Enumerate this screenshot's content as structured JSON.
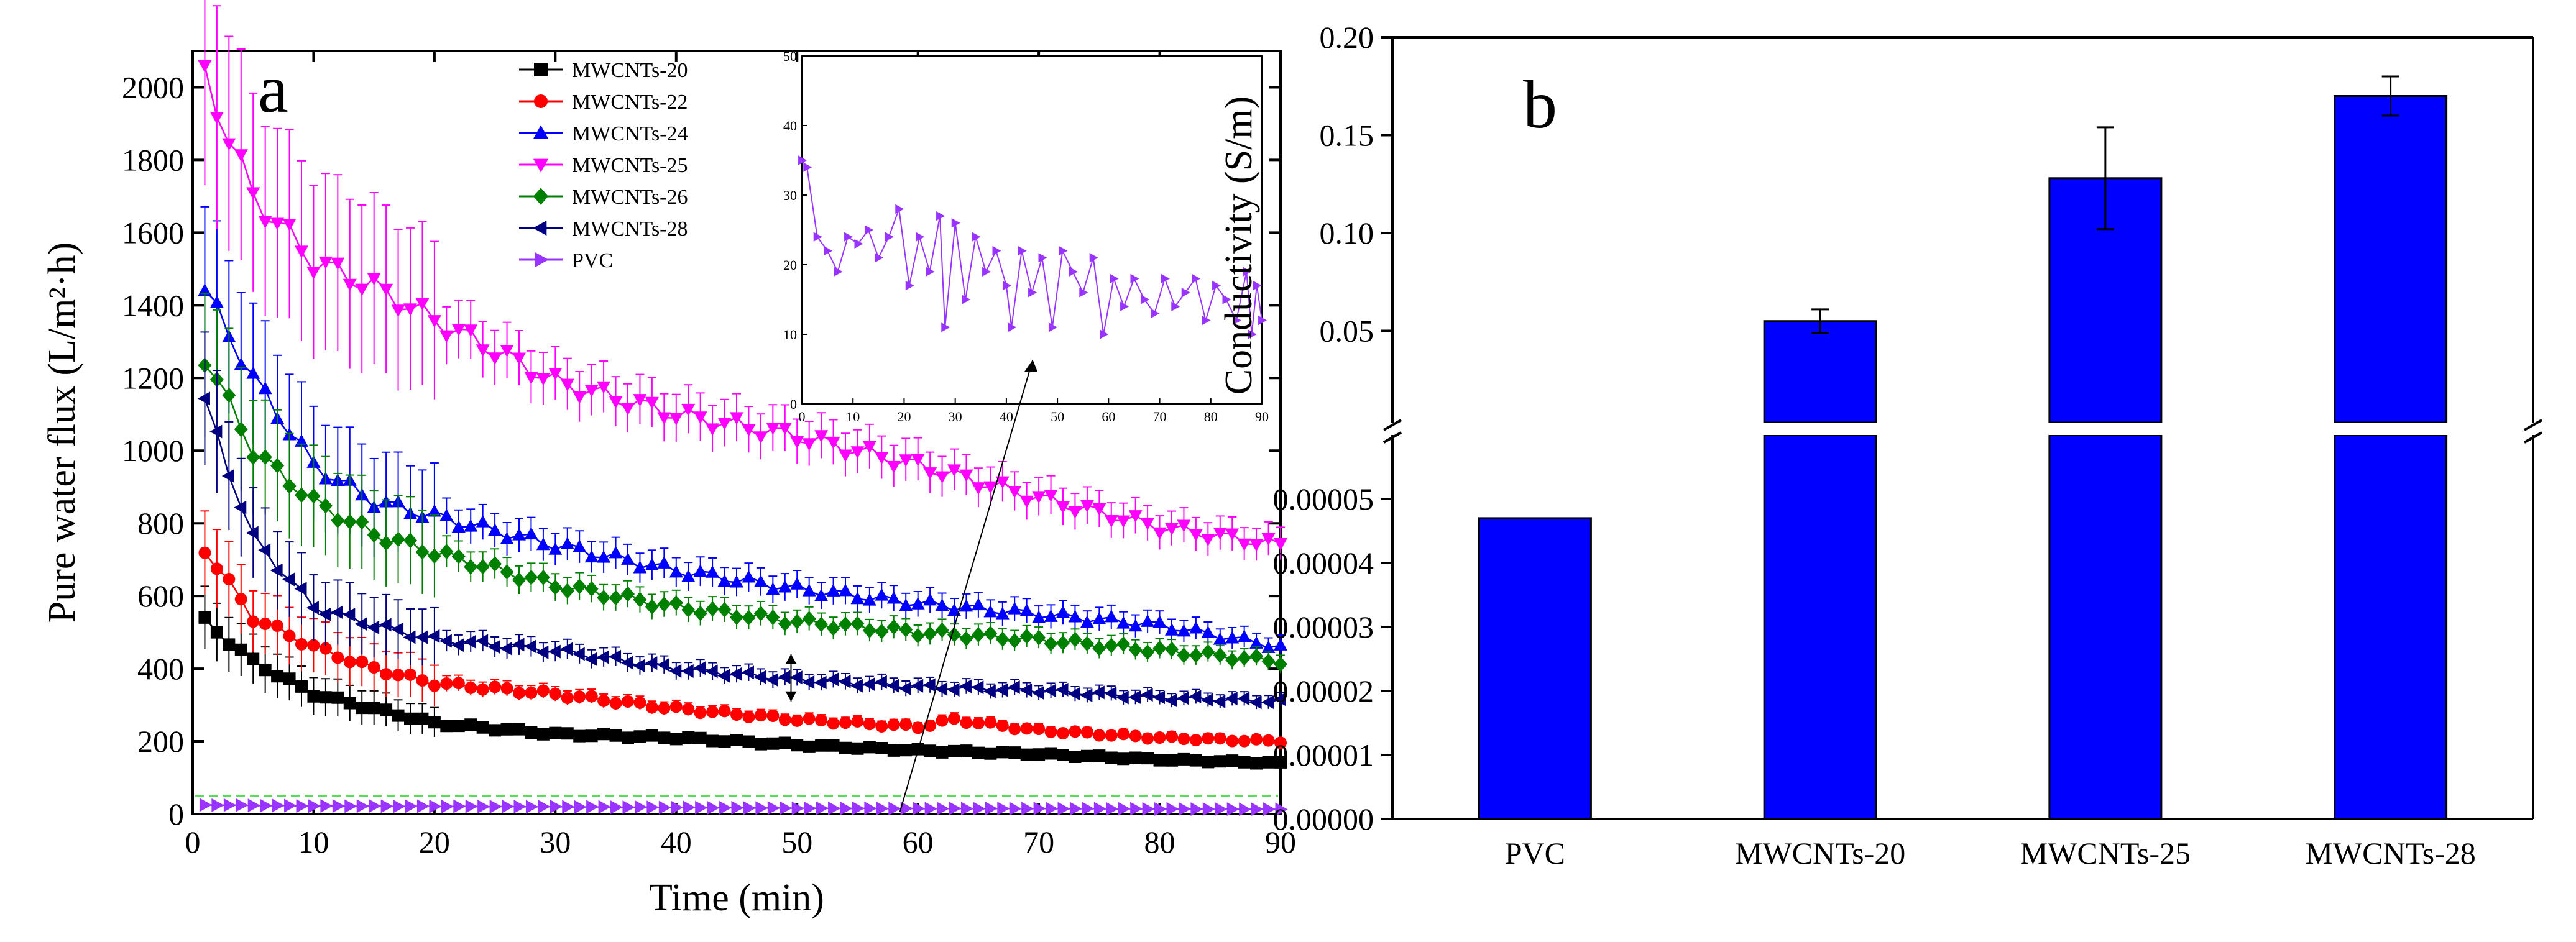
{
  "colors": {
    "MWCNTs-20": "#000000",
    "MWCNTs-22": "#ff0000",
    "MWCNTs-24": "#0000ff",
    "MWCNTs-25": "#ff00ff",
    "MWCNTs-26": "#008000",
    "MWCNTs-28": "#000080",
    "PVC": "#9933ff",
    "bar": "#0000ff"
  },
  "chart_data": [
    {
      "type": "line",
      "panel": "a",
      "xlabel": "Time (min)",
      "ylabel": "Pure water flux (L/m²·h)",
      "xlim": [
        0,
        90
      ],
      "ylim": [
        0,
        2100
      ],
      "xticks": [
        0,
        10,
        20,
        30,
        40,
        50,
        60,
        70,
        80,
        90
      ],
      "yticks": [
        0,
        200,
        400,
        600,
        800,
        1000,
        1200,
        1400,
        1600,
        1800,
        2000
      ],
      "legend_position": "top-center",
      "series": [
        {
          "name": "MWCNTs-20",
          "marker": "square",
          "x": [
            1,
            5,
            10,
            15,
            20,
            30,
            40,
            50,
            60,
            70,
            80,
            90
          ],
          "values": [
            530,
            420,
            330,
            290,
            250,
            220,
            210,
            190,
            175,
            165,
            150,
            140
          ]
        },
        {
          "name": "MWCNTs-22",
          "marker": "circle",
          "x": [
            1,
            5,
            10,
            15,
            20,
            30,
            40,
            50,
            60,
            63,
            70,
            80,
            90
          ],
          "values": [
            730,
            540,
            460,
            400,
            360,
            330,
            290,
            260,
            240,
            260,
            230,
            210,
            200
          ]
        },
        {
          "name": "MWCNTs-24",
          "marker": "triangle-up",
          "x": [
            1,
            5,
            10,
            15,
            20,
            30,
            40,
            50,
            60,
            70,
            80,
            90
          ],
          "values": [
            1440,
            1200,
            960,
            860,
            820,
            740,
            670,
            620,
            580,
            550,
            520,
            460
          ]
        },
        {
          "name": "MWCNTs-25",
          "marker": "triangle-down",
          "x": [
            1,
            5,
            10,
            15,
            20,
            30,
            40,
            50,
            60,
            70,
            80,
            90
          ],
          "values": [
            2030,
            1700,
            1520,
            1450,
            1360,
            1190,
            1100,
            1040,
            960,
            870,
            790,
            740
          ]
        },
        {
          "name": "MWCNTs-26",
          "marker": "diamond",
          "x": [
            1,
            5,
            10,
            15,
            20,
            30,
            40,
            50,
            60,
            70,
            80,
            90
          ],
          "values": [
            1260,
            1000,
            860,
            770,
            720,
            630,
            570,
            530,
            500,
            480,
            450,
            420
          ]
        },
        {
          "name": "MWCNTs-28",
          "marker": "triangle-left",
          "x": [
            1,
            5,
            10,
            15,
            20,
            30,
            40,
            50,
            60,
            70,
            80,
            90
          ],
          "values": [
            1130,
            760,
            570,
            520,
            480,
            450,
            400,
            370,
            350,
            340,
            320,
            310
          ]
        },
        {
          "name": "PVC",
          "marker": "triangle-right",
          "x": [
            1,
            10,
            20,
            30,
            40,
            50,
            60,
            70,
            80,
            90
          ],
          "values": [
            25,
            22,
            21,
            20,
            18,
            16,
            15,
            15,
            14,
            13
          ]
        }
      ],
      "inset": {
        "series": "PVC",
        "xlim": [
          0,
          90
        ],
        "ylim": [
          0,
          50
        ],
        "xticks": [
          0,
          10,
          20,
          30,
          40,
          50,
          60,
          70,
          80,
          90
        ],
        "yticks": [
          0,
          10,
          20,
          30,
          40,
          50
        ],
        "x": [
          0,
          1,
          3,
          5,
          7,
          9,
          11,
          13,
          15,
          17,
          19,
          21,
          23,
          25,
          27,
          28,
          30,
          32,
          34,
          36,
          38,
          40,
          41,
          43,
          45,
          47,
          49,
          51,
          53,
          55,
          57,
          59,
          61,
          63,
          65,
          67,
          69,
          71,
          73,
          75,
          77,
          79,
          81,
          83,
          85,
          87,
          88,
          89,
          90
        ],
        "values": [
          35,
          34,
          24,
          22,
          19,
          24,
          23,
          25,
          21,
          24,
          28,
          17,
          24,
          19,
          27,
          11,
          26,
          15,
          24,
          19,
          22,
          17,
          11,
          22,
          16,
          21,
          11,
          22,
          19,
          16,
          21,
          10,
          18,
          14,
          18,
          15,
          13,
          18,
          14,
          16,
          18,
          12,
          17,
          15,
          12,
          19,
          10,
          17,
          12
        ]
      }
    },
    {
      "type": "bar",
      "panel": "b",
      "ylabel": "Conductivity (S/m)",
      "categories": [
        "PVC",
        "MWCNTs-20",
        "MWCNTs-25",
        "MWCNTs-28"
      ],
      "values": [
        4.7e-05,
        0.055,
        0.128,
        0.17
      ],
      "errors": [
        0,
        0.006,
        0.026,
        0.01
      ],
      "broken_axis": true,
      "lower_ylim": [
        0,
        6e-05
      ],
      "lower_yticks": [
        "0.00000",
        "0.00001",
        "0.00002",
        "0.00003",
        "0.00004",
        "0.00005"
      ],
      "upper_ylim": [
        0.0,
        0.2
      ],
      "upper_yticks": [
        "0.05",
        "0.10",
        "0.15",
        "0.20"
      ]
    }
  ]
}
